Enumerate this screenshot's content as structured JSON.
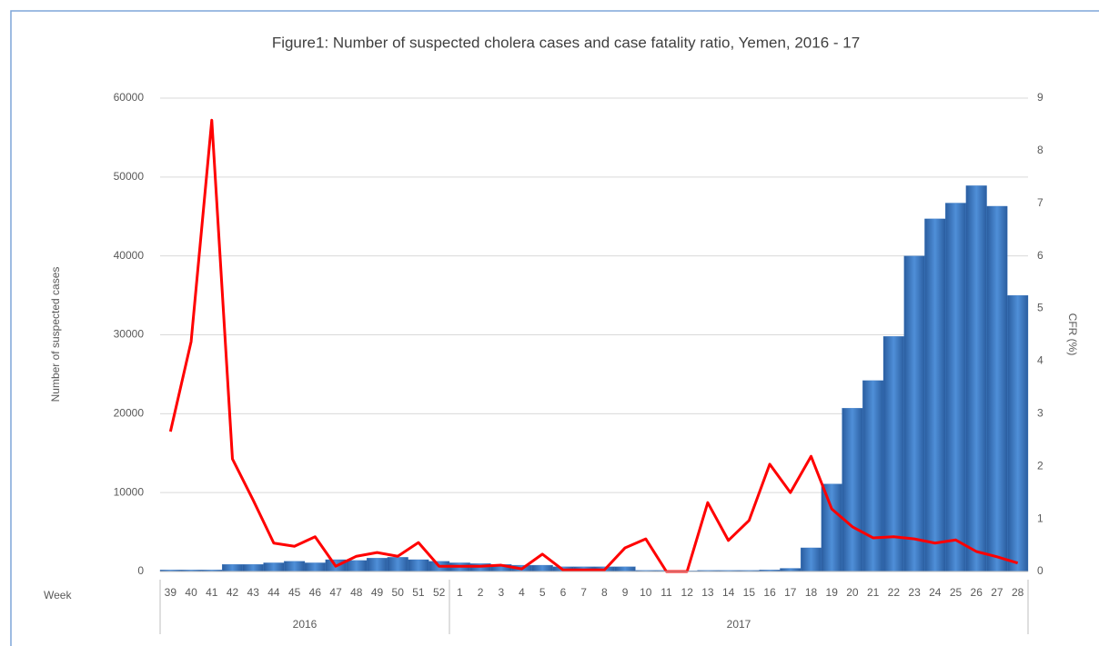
{
  "chart_data": {
    "type": "bar_line",
    "title": "Figure1: Number of suspected  cholera cases and case fatality ratio, Yemen, 2016 - 17",
    "x_label": "Week",
    "y_label": "Number of suspected cases",
    "y2_label": "CFR (%)",
    "categories": [
      "39",
      "40",
      "41",
      "42",
      "43",
      "44",
      "45",
      "46",
      "47",
      "48",
      "49",
      "50",
      "51",
      "52",
      "1",
      "2",
      "3",
      "4",
      "5",
      "6",
      "7",
      "8",
      "9",
      "10",
      "11",
      "12",
      "13",
      "14",
      "15",
      "16",
      "17",
      "18",
      "19",
      "20",
      "21",
      "22",
      "23",
      "24",
      "25",
      "26",
      "27",
      "28"
    ],
    "groups": [
      {
        "label": "2016",
        "size": 14
      },
      {
        "label": "2017",
        "size": 28
      }
    ],
    "series": [
      {
        "type": "bar",
        "color": "#3c7bc6",
        "values": [
          200,
          200,
          200,
          900,
          900,
          1100,
          1300,
          1100,
          1500,
          1400,
          1700,
          1800,
          1500,
          1300,
          1100,
          1000,
          900,
          800,
          800,
          600,
          600,
          600,
          600,
          150,
          150,
          100,
          150,
          150,
          150,
          200,
          400,
          3000,
          11100,
          20700,
          24200,
          29800,
          40000,
          44700,
          46700,
          48900,
          46300,
          35000
        ]
      },
      {
        "type": "line",
        "axis": "y2",
        "color": "#ff0000",
        "values": [
          2.66,
          4.37,
          8.58,
          2.14,
          1.36,
          0.54,
          0.48,
          0.66,
          0.1,
          0.29,
          0.36,
          0.29,
          0.55,
          0.1,
          0.1,
          0.1,
          0.12,
          0.05,
          0.33,
          0.03,
          0.03,
          0.03,
          0.45,
          0.62,
          0,
          0,
          1.31,
          0.59,
          0.97,
          2.04,
          1.5,
          2.19,
          1.19,
          0.85,
          0.64,
          0.66,
          0.62,
          0.54,
          0.6,
          0.38,
          0.28,
          0.16
        ]
      }
    ],
    "ylim": [
      0,
      60000
    ],
    "yticks": [
      0,
      10000,
      20000,
      30000,
      40000,
      50000,
      60000
    ],
    "y2lim": [
      0,
      9
    ],
    "y2ticks": [
      0,
      1,
      2,
      3,
      4,
      5,
      6,
      7,
      8,
      9
    ],
    "grid": true
  }
}
